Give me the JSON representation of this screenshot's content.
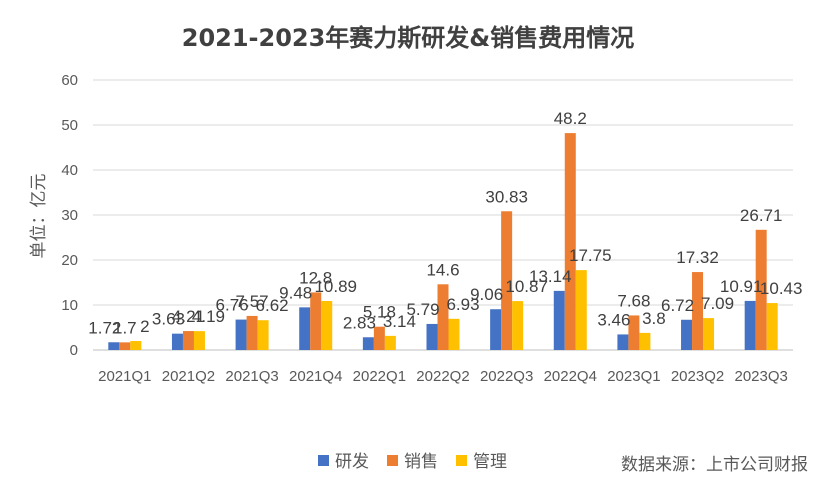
{
  "chart_data": {
    "type": "bar",
    "title": "2021-2023年赛力斯研发&销售费用情况",
    "xlabel": "",
    "ylabel": "单位：亿元",
    "ylim": [
      0,
      60
    ],
    "yticks": [
      0,
      10,
      20,
      30,
      40,
      50,
      60
    ],
    "grid": true,
    "legend_position": "bottom",
    "categories": [
      "2021Q1",
      "2021Q2",
      "2021Q3",
      "2021Q4",
      "2022Q1",
      "2022Q2",
      "2022Q3",
      "2022Q4",
      "2023Q1",
      "2023Q2",
      "2023Q3"
    ],
    "series": [
      {
        "name": "研发",
        "color": "#4472C4",
        "values": [
          1.72,
          3.63,
          6.76,
          9.48,
          2.83,
          5.79,
          9.06,
          13.14,
          3.46,
          6.72,
          10.91
        ],
        "labels": [
          "1.72",
          "3.63",
          "6.76",
          "9.48",
          "2.83",
          "5.79",
          "9.06",
          "13.14",
          "3.46",
          "6.72",
          "10.91"
        ]
      },
      {
        "name": "销售",
        "color": "#ED7D31",
        "values": [
          1.7,
          4.21,
          7.57,
          12.8,
          5.18,
          14.6,
          30.83,
          48.2,
          7.68,
          17.32,
          26.71
        ],
        "labels": [
          "1.7",
          "4.21",
          "7.57",
          "12.8",
          "5.18",
          "14.6",
          "30.83",
          "48.2",
          "7.68",
          "17.32",
          "26.71"
        ]
      },
      {
        "name": "管理",
        "color": "#FFC000",
        "values": [
          2,
          4.19,
          6.62,
          10.89,
          3.14,
          6.93,
          10.87,
          17.75,
          3.8,
          7.09,
          10.43
        ],
        "labels": [
          "2",
          "4.19",
          "6.62",
          "10.89",
          "3.14",
          "6.93",
          "10.87",
          "17.75",
          "3.8",
          "7.09",
          "10.43"
        ]
      }
    ],
    "source_note": "数据来源：上市公司财报"
  },
  "colors": {
    "background": "#ffffff",
    "gridline": "#D9D9D9",
    "axis_line": "#BFBFBF"
  }
}
